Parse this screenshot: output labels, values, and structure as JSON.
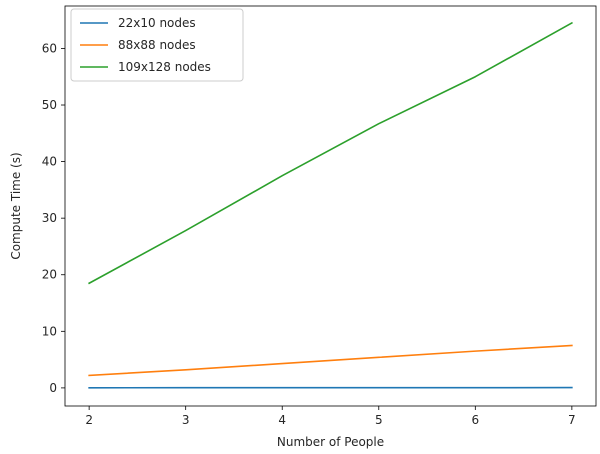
{
  "chart_data": {
    "type": "line",
    "title": "",
    "xlabel": "Number of People",
    "ylabel": "Compute Time (s)",
    "x": [
      2,
      3,
      4,
      5,
      6,
      7
    ],
    "xlim": [
      1.75,
      7.25
    ],
    "ylim": [
      -3.2,
      67.5
    ],
    "xticks": [
      2,
      3,
      4,
      5,
      6,
      7
    ],
    "yticks": [
      0,
      10,
      20,
      30,
      40,
      50,
      60
    ],
    "grid": false,
    "legend_position": "top-left",
    "series": [
      {
        "name": "22x10 nodes",
        "color": "#1f77b4",
        "values": [
          0.02,
          0.03,
          0.03,
          0.04,
          0.04,
          0.05
        ]
      },
      {
        "name": "88x88 nodes",
        "color": "#ff7f0e",
        "values": [
          2.2,
          3.2,
          4.3,
          5.4,
          6.5,
          7.5
        ]
      },
      {
        "name": "109x128 nodes",
        "color": "#2ca02c",
        "values": [
          18.5,
          27.8,
          37.5,
          46.7,
          55.0,
          64.5
        ]
      }
    ]
  }
}
